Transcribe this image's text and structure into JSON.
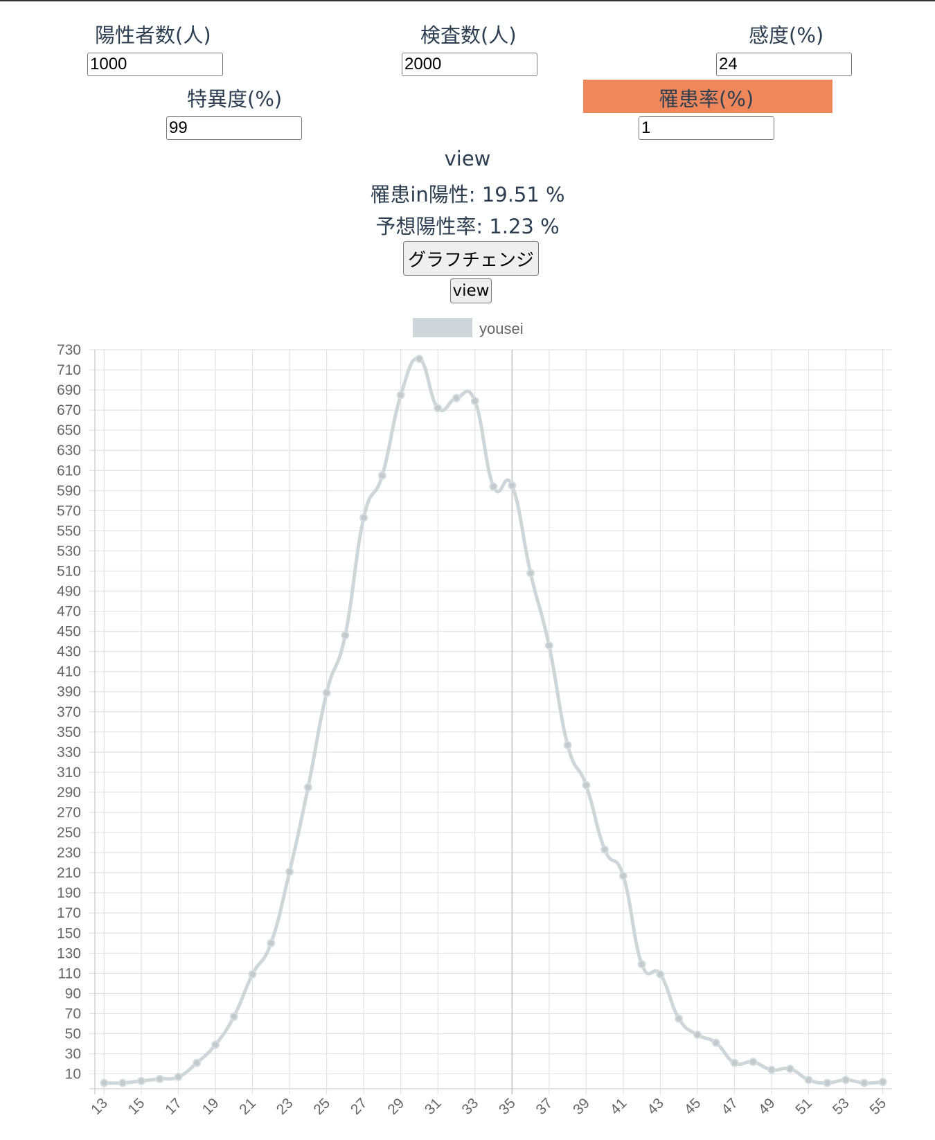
{
  "form": {
    "positives_label": "陽性者数(人)",
    "positives_value": "1000",
    "tests_label": "検査数(人)",
    "tests_value": "2000",
    "sensitivity_label": "感度(%)",
    "sensitivity_value": "24",
    "specificity_label": "特異度(%)",
    "specificity_value": "99",
    "prevalence_label": "罹患率(%)",
    "prevalence_value": "1"
  },
  "results": {
    "view_heading": "view",
    "infected_in_positive": "罹患in陽性: 19.51 %",
    "expected_positive_rate": "予想陽性率: 1.23 %"
  },
  "buttons": {
    "graph_change": "グラフチェンジ",
    "view": "view"
  },
  "colors": {
    "highlight": "#f0875a",
    "series": "#cfd6da",
    "grid": "#e3e3e3"
  },
  "chart_data": {
    "type": "line",
    "x": [
      13,
      14,
      15,
      16,
      17,
      18,
      19,
      20,
      21,
      22,
      23,
      24,
      25,
      26,
      27,
      28,
      29,
      30,
      31,
      32,
      33,
      34,
      35,
      36,
      37,
      38,
      39,
      40,
      41,
      42,
      43,
      44,
      45,
      46,
      47,
      48,
      49,
      50,
      51,
      52,
      53,
      54,
      55
    ],
    "x_tick_labels": [
      "13",
      "15",
      "17",
      "19",
      "21",
      "23",
      "25",
      "27",
      "29",
      "31",
      "33",
      "35",
      "37",
      "39",
      "41",
      "43",
      "45",
      "47",
      "49",
      "51",
      "53",
      "55"
    ],
    "series": [
      {
        "name": "yousei",
        "values": [
          1,
          1,
          3,
          5,
          7,
          21,
          39,
          67,
          109,
          140,
          211,
          295,
          389,
          446,
          563,
          605,
          685,
          721,
          672,
          682,
          679,
          594,
          595,
          508,
          436,
          337,
          297,
          233,
          207,
          119,
          109,
          65,
          49,
          41,
          21,
          22,
          14,
          15,
          4,
          1,
          4,
          1,
          2
        ]
      }
    ],
    "y_tick_labels": [
      "730",
      "710",
      "690",
      "670",
      "650",
      "630",
      "610",
      "590",
      "570",
      "550",
      "530",
      "510",
      "490",
      "470",
      "450",
      "430",
      "410",
      "390",
      "370",
      "350",
      "330",
      "310",
      "290",
      "270",
      "250",
      "230",
      "210",
      "190",
      "170",
      "150",
      "130",
      "110",
      "90",
      "70",
      "50",
      "30",
      "10"
    ],
    "ylim": [
      -2,
      730
    ],
    "legend": "top-center",
    "grid": true
  }
}
